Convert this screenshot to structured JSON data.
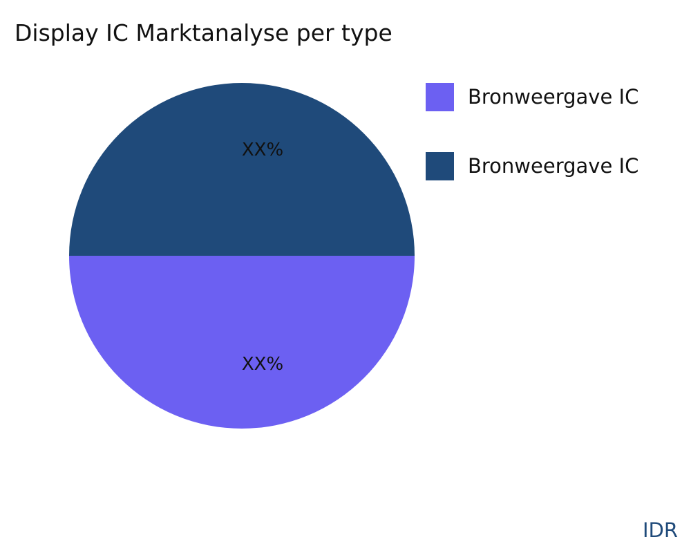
{
  "chart_data": {
    "type": "pie",
    "title": "Display IC Marktanalyse per type",
    "slices": [
      {
        "name": "Bronweergave IC",
        "value": 50,
        "label": "XX%",
        "color": "#6c60f2"
      },
      {
        "name": "Bronweergave IC",
        "value": 50,
        "label": "XX%",
        "color": "#1f4a7a"
      }
    ],
    "legend_position": "right"
  },
  "branding": {
    "text": "IDR",
    "color": "#1f4a7a"
  }
}
